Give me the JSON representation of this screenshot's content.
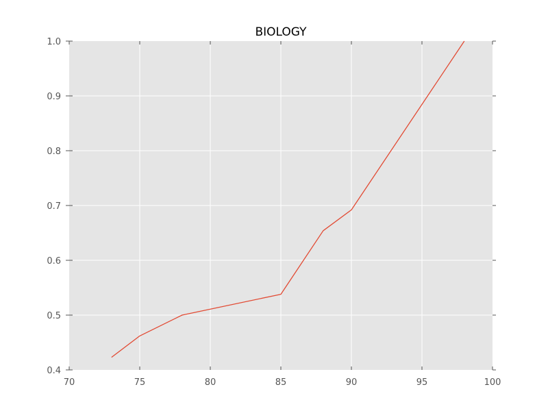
{
  "chart_data": {
    "type": "line",
    "title": "BIOLOGY",
    "xlabel": "",
    "ylabel": "",
    "xlim": [
      70,
      100
    ],
    "ylim": [
      0.4,
      1.0
    ],
    "x_ticks": [
      70,
      75,
      80,
      85,
      90,
      95,
      100
    ],
    "y_ticks": [
      0.4,
      0.5,
      0.6,
      0.7,
      0.8,
      0.9,
      1.0
    ],
    "grid": true,
    "background_color": "#e5e5e5",
    "grid_color": "#ffffff",
    "series": [
      {
        "color": "#e24a33",
        "x": [
          73,
          75,
          78,
          85,
          88,
          90,
          98
        ],
        "y": [
          0.423,
          0.462,
          0.5,
          0.538,
          0.654,
          0.692,
          1.0
        ]
      }
    ]
  }
}
